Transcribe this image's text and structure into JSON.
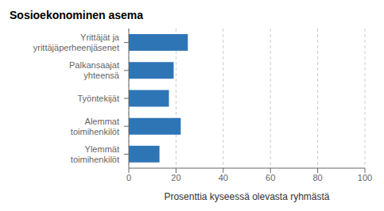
{
  "chart_data": {
    "type": "bar",
    "orientation": "horizontal",
    "title": "Sosioekonominen asema",
    "categories": [
      "Ylemmät\ntoimihenkilöt",
      "Alemmat\ntoimihenkilöt",
      "Työntekijät",
      "Palkansaajat\nyhteensä",
      "Yrittäjät ja\nyrittäjäperheenjäsenet"
    ],
    "values": [
      13,
      22,
      17,
      19,
      25
    ],
    "color": "#2e75b6",
    "xlabel": "Prosenttia kyseessä olevasta ryhmästä",
    "xlim": [
      0,
      100
    ],
    "xticks": [
      0,
      20,
      40,
      60,
      80,
      100
    ],
    "grid": true
  }
}
